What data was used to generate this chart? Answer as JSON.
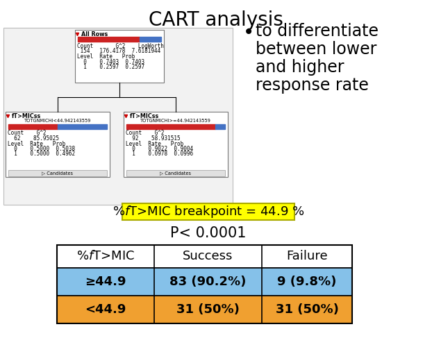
{
  "title": "CART analysis",
  "bullet_text": [
    "to differentiate",
    "between lower",
    "and higher",
    "response rate"
  ],
  "breakpoint_label": "%fT>MIC breakpoint = 44.9 %",
  "pvalue_label": "P< 0.0001",
  "table_headers": [
    "%fT>MIC",
    "Success",
    "Failure"
  ],
  "table_row1": [
    "≥44.9",
    "83 (90.2%)",
    "9 (9.8%)"
  ],
  "table_row2": [
    "<44.9",
    "31 (50%)",
    "31 (50%)"
  ],
  "row1_color": "#85C1E9",
  "row2_color": "#F0A030",
  "breakpoint_bg": "#FFFF00",
  "tree_bg": "#F0F0F0",
  "title_fontsize": 20,
  "bullet_fontsize": 17,
  "breakpoint_fontsize": 13,
  "pvalue_fontsize": 15,
  "table_header_fontsize": 13,
  "table_data_fontsize": 13
}
